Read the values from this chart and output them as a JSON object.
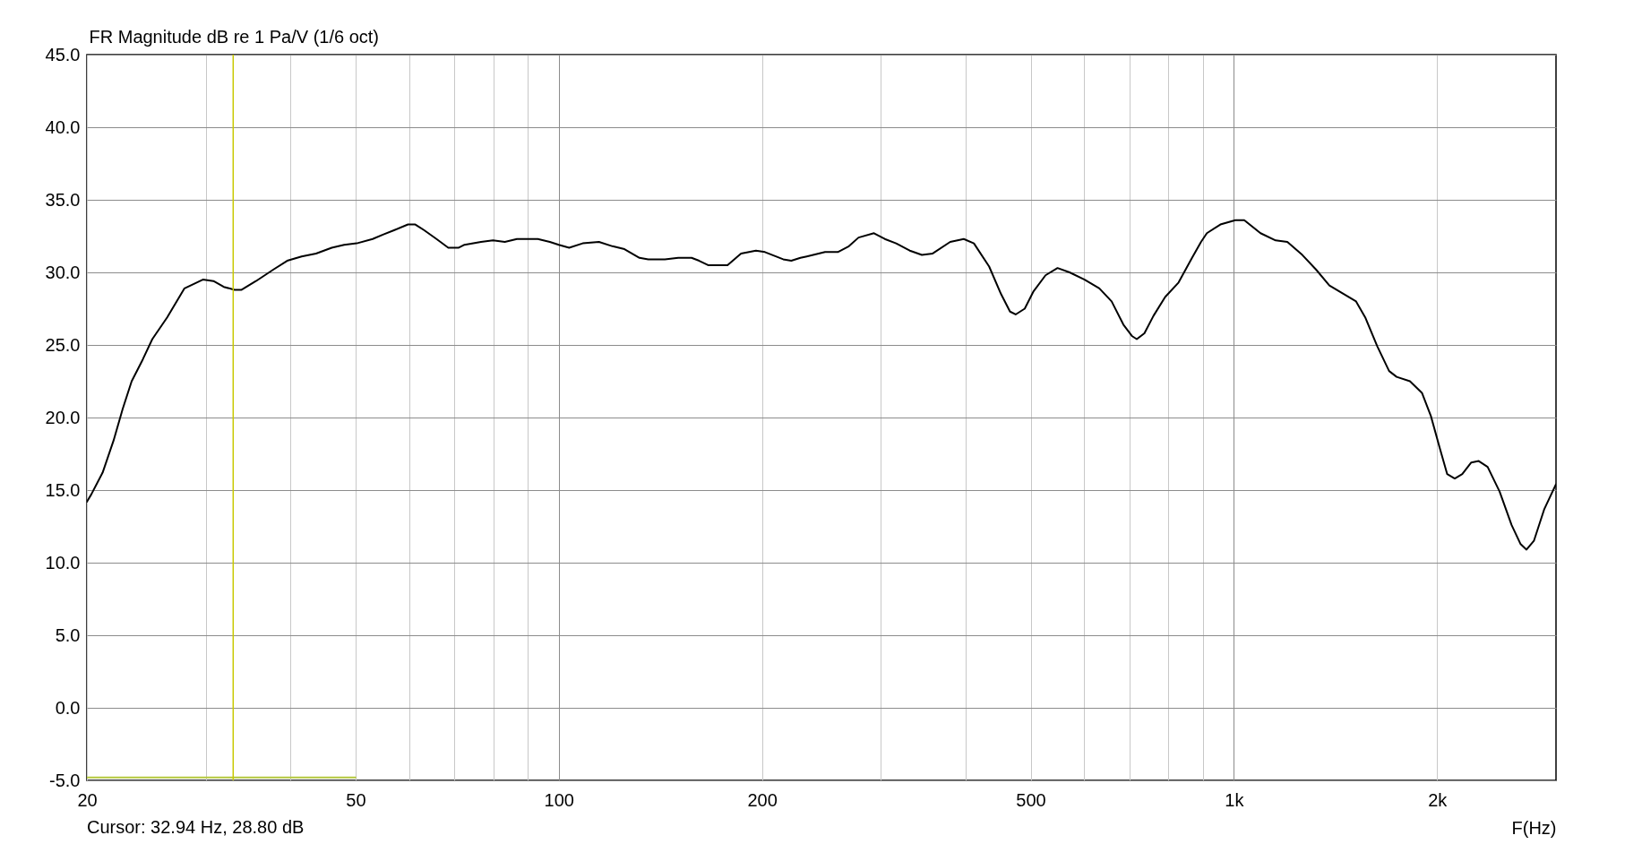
{
  "chart_data": {
    "type": "line",
    "ylabel": "FR Magnitude dB re 1 Pa/V (1/6 oct)",
    "xlabel": "F(Hz)",
    "annotations": [
      "Cursor: 32.94 Hz, 28.80 dB"
    ],
    "log": "x",
    "grid": true,
    "line_style": "solid",
    "xlim": [
      20,
      3000
    ],
    "ylim": [
      -5,
      45
    ],
    "xticks": [
      20,
      {
        "value": 30,
        "label": null
      },
      {
        "value": 40,
        "label": null
      },
      50,
      {
        "value": 60,
        "label": null
      },
      {
        "value": 70,
        "label": null
      },
      {
        "value": 80,
        "label": null
      },
      {
        "value": 90,
        "label": null
      },
      100,
      200,
      {
        "value": 300,
        "label": null
      },
      {
        "value": 400,
        "label": null
      },
      500,
      {
        "value": 600,
        "label": null
      },
      {
        "value": 700,
        "label": null
      },
      {
        "value": 800,
        "label": null
      },
      {
        "value": 900,
        "label": null
      },
      {
        "value": 1000,
        "label": "1k"
      },
      {
        "value": 2000,
        "label": "2k"
      }
    ],
    "yticks": [
      {
        "value": -5,
        "label": "-5.0"
      },
      {
        "value": 0,
        "label": "0.0"
      },
      {
        "value": 5,
        "label": "5.0"
      },
      {
        "value": 10,
        "label": "10.0"
      },
      {
        "value": 15,
        "label": "15.0"
      },
      {
        "value": 20,
        "label": "20.0"
      },
      {
        "value": 25,
        "label": "25.0"
      },
      {
        "value": 30,
        "label": "30.0"
      },
      {
        "value": 35,
        "label": "35.0"
      },
      {
        "value": 40,
        "label": "40.0"
      },
      {
        "value": 45,
        "label": "45.0"
      }
    ],
    "ref_lines": [
      {
        "axis": "x",
        "value": 32.94,
        "color": "#c8c800"
      }
    ],
    "series": [
      {
        "color": "#000000",
        "x": [
          20,
          20.3,
          21.1,
          21.9,
          22.6,
          23.3,
          24.2,
          25.0,
          26.3,
          27.9,
          29.7,
          30.8,
          31.9,
          33.1,
          33.9,
          35.6,
          37.8,
          39.6,
          41.6,
          43.7,
          46.1,
          48.1,
          50.2,
          53.0,
          54.9,
          57.0,
          59.8,
          61.3,
          63.2,
          65.9,
          68.6,
          71.1,
          72.5,
          76.7,
          79.9,
          83.2,
          86.7,
          93.1,
          97.0,
          100,
          103.6,
          108.5,
          114.7,
          120.1,
          125.1,
          131.7,
          135.7,
          143.6,
          150.3,
          157.3,
          161.4,
          166.4,
          177.8,
          186.2,
          195.9,
          202,
          215,
          221,
          228,
          233,
          248,
          259,
          269,
          278,
          293,
          304,
          316,
          331,
          345,
          358,
          380,
          398,
          412,
          434,
          452,
          466,
          475,
          490,
          505,
          526,
          548,
          571,
          601,
          632,
          659,
          686,
          707,
          718,
          737,
          760,
          791,
          828,
          867,
          894,
          912,
          955,
          1005,
          1036,
          1095,
          1153,
          1200,
          1263,
          1323,
          1385,
          1443,
          1517,
          1565,
          1631,
          1698,
          1742,
          1823,
          1899,
          1958,
          2018,
          2070,
          2124,
          2179,
          2247,
          2305,
          2376,
          2475,
          2578,
          2657,
          2713,
          2782,
          2883,
          3000
        ],
        "values": [
          14.2,
          14.7,
          16.2,
          18.4,
          20.6,
          22.5,
          24.0,
          25.4,
          26.9,
          28.9,
          29.5,
          29.4,
          29.0,
          28.8,
          28.8,
          29.4,
          30.2,
          30.8,
          31.1,
          31.3,
          31.7,
          31.9,
          32.0,
          32.3,
          32.6,
          32.9,
          33.3,
          33.3,
          32.9,
          32.3,
          31.7,
          31.7,
          31.9,
          32.1,
          32.2,
          32.1,
          32.3,
          32.3,
          32.1,
          31.9,
          31.7,
          32.0,
          32.1,
          31.8,
          31.6,
          31.0,
          30.9,
          30.9,
          31.0,
          31.0,
          30.8,
          30.5,
          30.5,
          31.3,
          31.5,
          31.4,
          30.9,
          30.8,
          31.0,
          31.1,
          31.4,
          31.4,
          31.8,
          32.4,
          32.7,
          32.3,
          32.0,
          31.5,
          31.2,
          31.3,
          32.1,
          32.3,
          32.0,
          30.4,
          28.5,
          27.3,
          27.1,
          27.5,
          28.7,
          29.8,
          30.3,
          30.0,
          29.5,
          28.9,
          28.0,
          26.4,
          25.6,
          25.4,
          25.8,
          27.0,
          28.3,
          29.3,
          31.0,
          32.1,
          32.7,
          33.3,
          33.6,
          33.6,
          32.7,
          32.2,
          32.1,
          31.2,
          30.2,
          29.1,
          28.6,
          28.0,
          26.9,
          24.9,
          23.2,
          22.8,
          22.5,
          21.7,
          20.1,
          17.9,
          16.1,
          15.8,
          16.1,
          16.9,
          17.0,
          16.6,
          14.9,
          12.6,
          11.3,
          10.9,
          11.5,
          13.7,
          15.4
        ]
      },
      {
        "color": "#b4c83c",
        "x": [
          20,
          50
        ],
        "values": [
          -4.8,
          -4.8
        ]
      }
    ]
  }
}
